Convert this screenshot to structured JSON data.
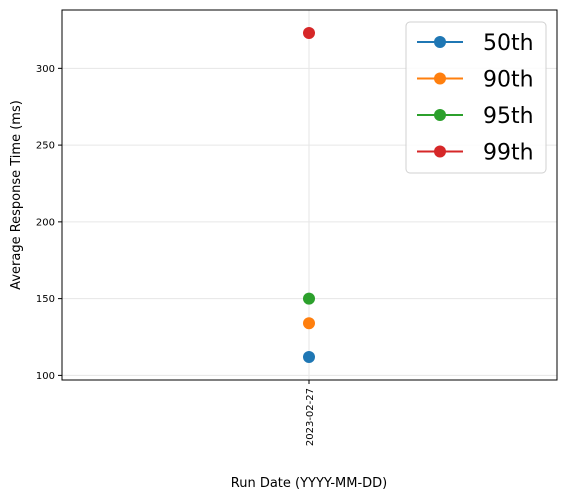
{
  "chart_data": {
    "type": "line",
    "x": [
      "2023-02-27"
    ],
    "series": [
      {
        "name": "50th",
        "values": [
          112
        ],
        "color": "#1f77b4"
      },
      {
        "name": "90th",
        "values": [
          134
        ],
        "color": "#ff7f0e"
      },
      {
        "name": "95th",
        "values": [
          150
        ],
        "color": "#2ca02c"
      },
      {
        "name": "99th",
        "values": [
          323
        ],
        "color": "#d62728"
      }
    ],
    "xlabel": "Run Date (YYYY-MM-DD)",
    "ylabel": "Average Response Time (ms)",
    "ylim": [
      97,
      338
    ],
    "yticks": [
      100,
      150,
      200,
      250,
      300
    ],
    "grid": true,
    "legend_position": "top-right"
  }
}
